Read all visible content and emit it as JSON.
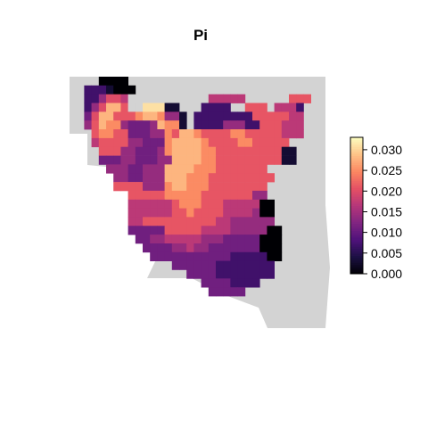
{
  "title": "Pi",
  "legend": {
    "ticks": [
      "0.030",
      "0.025",
      "0.020",
      "0.015",
      "0.010",
      "0.005",
      "0.000"
    ],
    "tick_values": [
      0.03,
      0.025,
      0.02,
      0.015,
      0.01,
      0.005,
      0.0
    ],
    "range": [
      0,
      0.033
    ]
  },
  "colors": {
    "no_data": "#d3d3d3",
    "palette": [
      "#000004",
      "#1c1044",
      "#4f127b",
      "#812581",
      "#b5367a",
      "#e55064",
      "#fb8761",
      "#fec287",
      "#fcfdbf"
    ]
  },
  "map_data": {
    "type": "raster",
    "variable": "Pi",
    "no_data_value": null,
    "grid": [
      "....NNNN............................",
      "..aaaANNN...........................",
      "..aacjjdG..........ddddd......eee..",
      "..acjggeGGhhhAA...aaaa..eee.ddda...",
      "..bjggeeefggfccA.aaaaaaaaeeeeedd..",
      "..cegffcbbbcgffA.aaaacccaaeeeddd...",
      "...effeebbbccfeggfeeeeffeeeeeddd...",
      "...deeeeccbbbfggggfeeeeffeeeee.....",
      "....eeeccbbbcfggggffeeeeeeeeeAA....",
      "....bbbccbbbccggggffeeeeeeeeeAA....",
      ".....cccbbcccggggfffeeeeeee.........",
      "......ccbbcccgggfffeeeeeeeee........",
      "......eeeecccfggfffeeeeeeee.........",
      "........eeeeefffffeeeeeeecc.........",
      "........ddddddefffeeedddddNN........",
      "........ddddddeefeeeeddddcNN........",
      "........ddeeeeeeeeeeddcccccc........",
      "........bbbbbeeeeeddddcccccNN.......",
      ".........bbccdddddcccbbbbbNNN.......",
      "..........bbbbccdccbbbbbbbNNN.......",
      "...........bbbbbbbbbbbaaaaaNN.......",
      "..............bbbbbbaaaaaaaa........",
      "................bbbbaaaaaaaa........",
      "..................bbbbaaaa..........",
      "...................bbbbb............"
    ],
    "legend_key": {
      "N": 0.0,
      "A": 0.003,
      "a": 0.007,
      "b": 0.011,
      "c": 0.014,
      "d": 0.017,
      "e": 0.021,
      "f": 0.025,
      "g": 0.028,
      "h": 0.031,
      "j": 0.02,
      "G": "no_data"
    }
  }
}
